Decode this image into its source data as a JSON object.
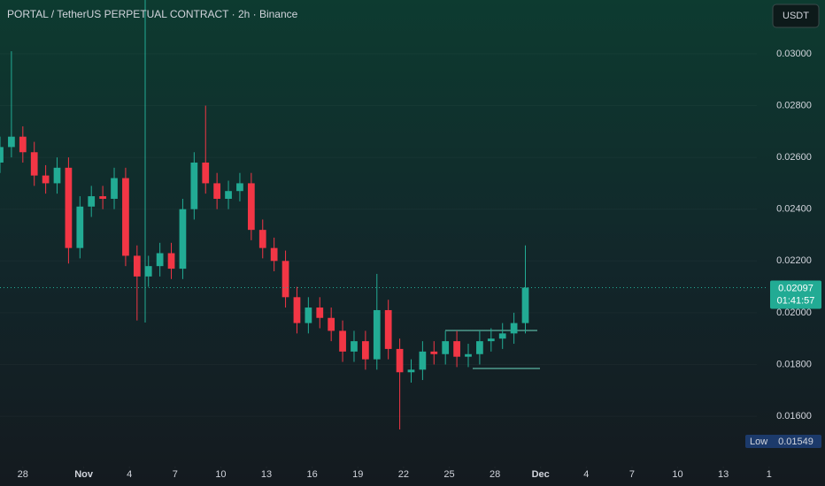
{
  "chart_data": {
    "type": "candlestick",
    "title": "PORTAL / TetherUS PERPETUAL CONTRACT · 2h · Binance",
    "currency": "USDT",
    "x": [
      -5.5,
      -4.75,
      -4,
      -3.25,
      -2.5,
      -1.75,
      -1,
      -0.25,
      0.5,
      1.25,
      2,
      2.75,
      3.5,
      4.25,
      5,
      5.75,
      6.5,
      7.25,
      8,
      8.75,
      9.5,
      10.25,
      11,
      11.75,
      12.5,
      13.25,
      14,
      14.75,
      15.5,
      16.25,
      17,
      17.75,
      18.5,
      19.25,
      20,
      20.75,
      21.5,
      22.25,
      23,
      23.75,
      24.5,
      25.25,
      26,
      26.75,
      27.5,
      28.25,
      29
    ],
    "open": [
      0.0258,
      0.0264,
      0.0268,
      0.0262,
      0.0253,
      0.025,
      0.0256,
      0.0225,
      0.0241,
      0.0245,
      0.0244,
      0.0252,
      0.0222,
      0.0214,
      0.0218,
      0.0223,
      0.0217,
      0.024,
      0.0258,
      0.025,
      0.0244,
      0.0247,
      0.025,
      0.0232,
      0.0225,
      0.022,
      0.0206,
      0.0196,
      0.0202,
      0.0198,
      0.0193,
      0.0185,
      0.0189,
      0.0182,
      0.0201,
      0.0186,
      0.0177,
      0.0178,
      0.0185,
      0.0184,
      0.0189,
      0.0183,
      0.0184,
      0.0189,
      0.019,
      0.0192,
      0.0196
    ],
    "high": [
      0.0268,
      0.0301,
      0.0272,
      0.0266,
      0.0257,
      0.026,
      0.026,
      0.0245,
      0.0249,
      0.0249,
      0.0256,
      0.0256,
      0.0226,
      0.0222,
      0.0227,
      0.0227,
      0.0244,
      0.0262,
      0.028,
      0.0254,
      0.0251,
      0.0254,
      0.0254,
      0.0236,
      0.0229,
      0.0224,
      0.021,
      0.0206,
      0.0206,
      0.0202,
      0.0197,
      0.0193,
      0.0193,
      0.0215,
      0.0205,
      0.019,
      0.0182,
      0.0189,
      0.0189,
      0.0193,
      0.0193,
      0.0188,
      0.0193,
      0.0194,
      0.0196,
      0.02,
      0.0226
    ],
    "low": [
      0.0254,
      0.026,
      0.0258,
      0.0249,
      0.0246,
      0.0246,
      0.0219,
      0.0221,
      0.0237,
      0.024,
      0.024,
      0.0218,
      0.0197,
      0.021,
      0.0214,
      0.0213,
      0.0213,
      0.0236,
      0.0246,
      0.024,
      0.024,
      0.0243,
      0.0228,
      0.0221,
      0.0216,
      0.0202,
      0.0192,
      0.0192,
      0.0194,
      0.0189,
      0.0181,
      0.0181,
      0.0178,
      0.0178,
      0.0182,
      0.01549,
      0.0173,
      0.0174,
      0.018,
      0.018,
      0.0179,
      0.0179,
      0.018,
      0.0185,
      0.0186,
      0.0188,
      0.0192
    ],
    "close": [
      0.0264,
      0.0268,
      0.0262,
      0.0253,
      0.025,
      0.0256,
      0.0225,
      0.0241,
      0.0245,
      0.0244,
      0.0252,
      0.0222,
      0.0214,
      0.0218,
      0.0223,
      0.0217,
      0.024,
      0.0258,
      0.025,
      0.0244,
      0.0247,
      0.025,
      0.0232,
      0.0225,
      0.022,
      0.0206,
      0.0196,
      0.0202,
      0.0198,
      0.0193,
      0.0185,
      0.0189,
      0.0182,
      0.0201,
      0.0186,
      0.0177,
      0.0178,
      0.0185,
      0.0184,
      0.0189,
      0.0183,
      0.0184,
      0.0189,
      0.019,
      0.0192,
      0.0196,
      0.02097
    ],
    "up_color": "#22ab94",
    "down_color": "#f23645",
    "xlim": [
      -5.5,
      44.2
    ],
    "xticks": [
      {
        "value": -4,
        "label": "28"
      },
      {
        "value": 0,
        "label": "Nov"
      },
      {
        "value": 3,
        "label": "4"
      },
      {
        "value": 6,
        "label": "7"
      },
      {
        "value": 9,
        "label": "10"
      },
      {
        "value": 12,
        "label": "13"
      },
      {
        "value": 15,
        "label": "16"
      },
      {
        "value": 18,
        "label": "19"
      },
      {
        "value": 21,
        "label": "22"
      },
      {
        "value": 24,
        "label": "25"
      },
      {
        "value": 27,
        "label": "28"
      },
      {
        "value": 30,
        "label": "Dec"
      },
      {
        "value": 33,
        "label": "4"
      },
      {
        "value": 36,
        "label": "7"
      },
      {
        "value": 39,
        "label": "10"
      },
      {
        "value": 42,
        "label": "13"
      },
      {
        "value": 45,
        "label": "1"
      }
    ],
    "ylim": [
      0.01433,
      0.03208
    ],
    "yticks": [
      {
        "value": 0.016,
        "label": "0.01600"
      },
      {
        "value": 0.018,
        "label": "0.01800"
      },
      {
        "value": 0.02,
        "label": "0.02000"
      },
      {
        "value": 0.022,
        "label": "0.02200"
      },
      {
        "value": 0.024,
        "label": "0.02400"
      },
      {
        "value": 0.026,
        "label": "0.02600"
      },
      {
        "value": 0.028,
        "label": "0.02800"
      },
      {
        "value": 0.03,
        "label": "0.03000"
      }
    ],
    "last_price": 0.02097,
    "countdown": "01:41:57",
    "low_label": "Low",
    "low_value": 0.01549
  }
}
